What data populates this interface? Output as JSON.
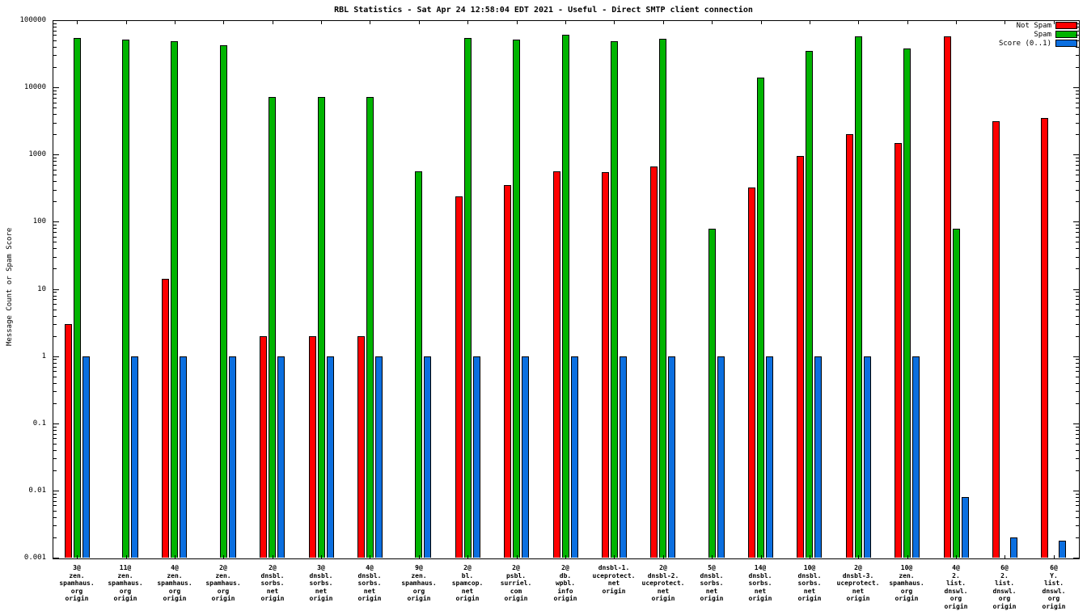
{
  "chart_data": {
    "type": "bar",
    "title": "RBL Statistics - Sat Apr 24 12:58:04 EDT 2021 - Useful - Direct SMTP client connection",
    "ylabel": "Message Count or Spam Score",
    "yscale": "log",
    "ylim": [
      0.001,
      100000
    ],
    "ytick_labels": [
      "100000",
      "10000",
      "1000",
      "100",
      "10",
      "1",
      "0.1",
      "0.01",
      "0.001"
    ],
    "grid": false,
    "legend_position": "top-right",
    "categories": [
      [
        "3@",
        "zen.",
        "spamhaus.",
        "org",
        "origin"
      ],
      [
        "11@",
        "zen.",
        "spamhaus.",
        "org",
        "origin"
      ],
      [
        "4@",
        "zen.",
        "spamhaus.",
        "org",
        "origin"
      ],
      [
        "2@",
        "zen.",
        "spamhaus.",
        "org",
        "origin"
      ],
      [
        "2@",
        "dnsbl.",
        "sorbs.",
        "net",
        "origin"
      ],
      [
        "3@",
        "dnsbl.",
        "sorbs.",
        "net",
        "origin"
      ],
      [
        "4@",
        "dnsbl.",
        "sorbs.",
        "net",
        "origin"
      ],
      [
        "9@",
        "zen.",
        "spamhaus.",
        "org",
        "origin"
      ],
      [
        "2@",
        "bl.",
        "spamcop.",
        "net",
        "origin"
      ],
      [
        "2@",
        "psbl.",
        "surriel.",
        "com",
        "origin"
      ],
      [
        "2@",
        "db.",
        "wpbl.",
        "info",
        "origin"
      ],
      [
        "dnsbl-1.",
        "uceprotect.",
        "net",
        "origin"
      ],
      [
        "2@",
        "dnsbl-2.",
        "uceprotect.",
        "net",
        "origin"
      ],
      [
        "5@",
        "dnsbl.",
        "sorbs.",
        "net",
        "origin"
      ],
      [
        "14@",
        "dnsbl.",
        "sorbs.",
        "net",
        "origin"
      ],
      [
        "10@",
        "dnsbl.",
        "sorbs.",
        "net",
        "origin"
      ],
      [
        "2@",
        "dnsbl-3.",
        "uceprotect.",
        "net",
        "origin"
      ],
      [
        "10@",
        "zen.",
        "spamhaus.",
        "org",
        "origin"
      ],
      [
        "4@",
        "2.",
        "list.",
        "dnswl.",
        "org",
        "origin"
      ],
      [
        "6@",
        "2.",
        "list.",
        "dnswl.",
        "org",
        "origin"
      ],
      [
        "6@",
        "Y.",
        "list.",
        "dnswl.",
        "org",
        "origin"
      ]
    ],
    "series": [
      {
        "name": "Not Spam",
        "color": "#ff0000",
        "values": [
          3,
          null,
          14,
          null,
          2,
          2,
          2,
          null,
          240,
          350,
          560,
          550,
          660,
          null,
          320,
          950,
          2000,
          1500,
          58000,
          3100,
          3500
        ]
      },
      {
        "name": "Spam",
        "color": "#00b400",
        "values": [
          55000,
          52000,
          48000,
          42000,
          7200,
          7200,
          7200,
          560,
          54000,
          52000,
          61000,
          49000,
          53000,
          78,
          14000,
          35000,
          57000,
          38000,
          78,
          null,
          null
        ]
      },
      {
        "name": "Score (0..1)",
        "color": "#0b6fe0",
        "values": [
          1,
          1,
          1,
          1,
          1,
          1,
          1,
          1,
          1,
          1,
          1,
          1,
          1,
          1,
          1,
          1,
          1,
          1,
          0.008,
          0.002,
          0.0018
        ]
      }
    ]
  }
}
